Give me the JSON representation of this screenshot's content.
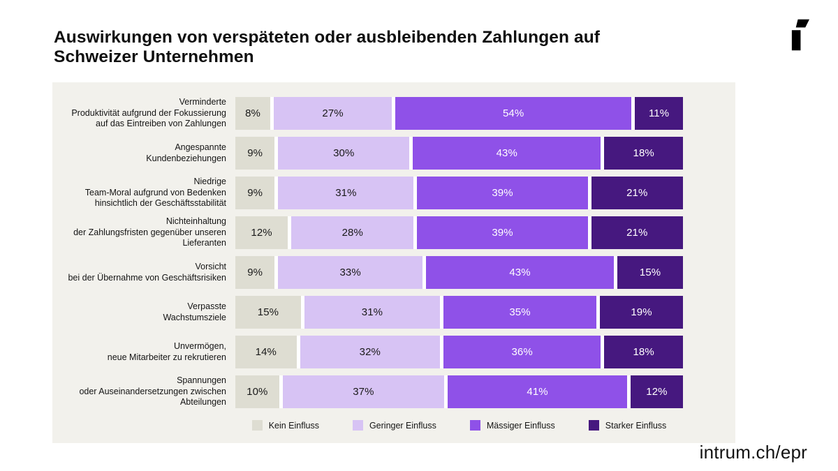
{
  "title": "Auswirkungen von verspäteten oder ausbleibenden Zahlungen auf\nSchweizer Unternehmen",
  "footer_link": "intrum.ch/epr",
  "logo": "intrum-logo",
  "colors": {
    "page_bg": "#ffffff",
    "panel_bg": "#f2f1ec",
    "kein_einfluss": "#deddd2",
    "geringer_einfluss": "#d7c3f4",
    "maessiger_einfluss": "#8f51e8",
    "starker_einfluss": "#46187f"
  },
  "chart_data": {
    "type": "bar",
    "stacked": true,
    "orientation": "horizontal",
    "value_unit": "%",
    "legend_position": "bottom",
    "categories": [
      "Verminderte\nProduktivität aufgrund der Fokussierung\nauf das Eintreiben von Zahlungen",
      "Angespannte\nKundenbeziehungen",
      "Niedrige\nTeam-Moral aufgrund von Bedenken\nhinsichtlich der Geschäftsstabilität",
      "Nichteinhaltung\nder Zahlungsfristen gegenüber unseren\nLieferanten",
      "Vorsicht\nbei der Übernahme von Geschäftsrisiken",
      "Verpasste\nWachstumsziele",
      "Unvermögen,\nneue Mitarbeiter zu rekrutieren",
      "Spannungen\noder Auseinandersetzungen zwischen\nAbteilungen"
    ],
    "series": [
      {
        "name": "Kein Einfluss",
        "color": "#deddd2",
        "text_color": "#1a1a1a",
        "values": [
          8,
          9,
          9,
          12,
          9,
          15,
          14,
          10
        ]
      },
      {
        "name": "Geringer Einfluss",
        "color": "#d7c3f4",
        "text_color": "#1a1a1a",
        "values": [
          27,
          30,
          31,
          28,
          33,
          31,
          32,
          37
        ]
      },
      {
        "name": "Mässiger Einfluss",
        "color": "#8f51e8",
        "text_color": "#ffffff",
        "values": [
          54,
          43,
          39,
          39,
          43,
          35,
          36,
          41
        ]
      },
      {
        "name": "Starker Einfluss",
        "color": "#46187f",
        "text_color": "#ffffff",
        "values": [
          11,
          18,
          21,
          21,
          15,
          19,
          18,
          12
        ]
      }
    ]
  }
}
